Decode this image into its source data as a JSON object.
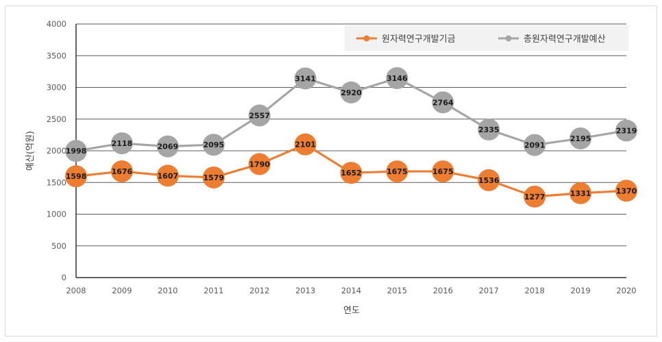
{
  "chart_data": {
    "type": "line",
    "title": "",
    "xlabel": "연도",
    "ylabel": "예산(억원)",
    "categories": [
      "2008",
      "2009",
      "2010",
      "2011",
      "2012",
      "2013",
      "2014",
      "2015",
      "2016",
      "2017",
      "2018",
      "2019",
      "2020"
    ],
    "ylim": [
      0,
      4000
    ],
    "yticks": [
      "0",
      "500",
      "1000",
      "1500",
      "2000",
      "2500",
      "3000",
      "3500",
      "4000"
    ],
    "grid": true,
    "legend_position": "top-right",
    "series": [
      {
        "name": "원자력연구개발기금",
        "color": "#ED7D31",
        "values": [
          1598,
          1676,
          1607,
          1579,
          1790,
          2101,
          1652,
          1675,
          1675,
          1536,
          1277,
          1331,
          1370
        ]
      },
      {
        "name": "총원자력연구개발예산",
        "color": "#A5A5A5",
        "values": [
          1998,
          2118,
          2069,
          2095,
          2557,
          3141,
          2920,
          3146,
          2764,
          2335,
          2091,
          2195,
          2319
        ]
      }
    ]
  }
}
